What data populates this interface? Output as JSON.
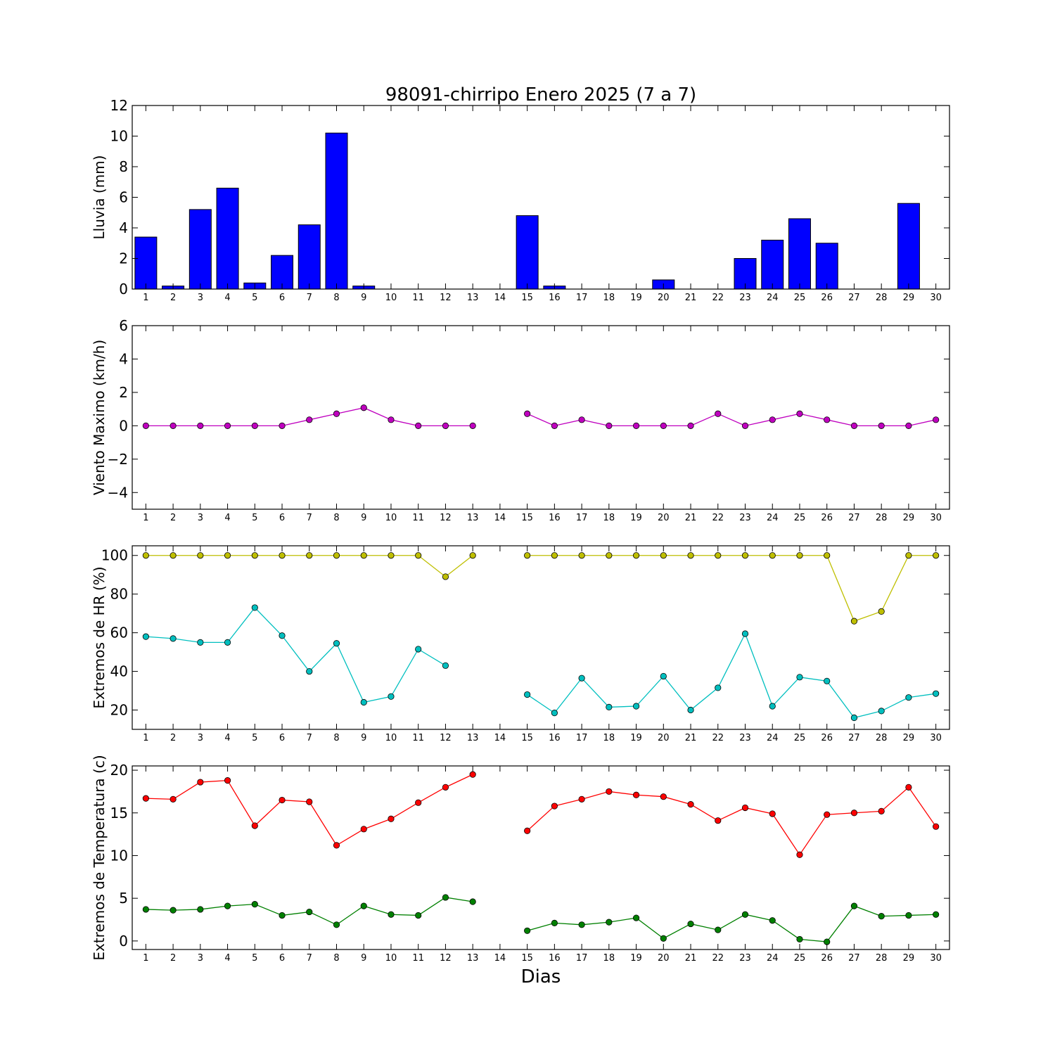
{
  "chart_data": [
    {
      "type": "bar",
      "title": "98091-chirripo Enero 2025  (7 a 7)",
      "ylabel": "Lluvia (mm)",
      "xlabel": "",
      "xlim": [
        0.5,
        30.5
      ],
      "ylim": [
        0,
        12
      ],
      "y_ticks": [
        "0",
        "2",
        "4",
        "6",
        "8",
        "10",
        "12"
      ],
      "x_ticks": [
        "1",
        "2",
        "3",
        "4",
        "5",
        "6",
        "7",
        "8",
        "9",
        "10",
        "11",
        "12",
        "13",
        "14",
        "15",
        "16",
        "17",
        "18",
        "19",
        "20",
        "21",
        "22",
        "23",
        "24",
        "25",
        "26",
        "27",
        "28",
        "29",
        "30"
      ],
      "color": "#0000ff",
      "series": [
        {
          "values": [
            3.4,
            0.2,
            5.2,
            6.6,
            0.4,
            2.2,
            4.2,
            10.2,
            0.2,
            0,
            0,
            0,
            0,
            null,
            4.8,
            0.2,
            0,
            0,
            0,
            0.6,
            0,
            0,
            2.0,
            3.2,
            4.6,
            3.0,
            0,
            0,
            5.6,
            null
          ]
        }
      ]
    },
    {
      "type": "line",
      "title": "",
      "ylabel": "Viento Maximo (km/h)",
      "xlabel": "",
      "xlim": [
        0.5,
        30.5
      ],
      "ylim": [
        -5,
        6
      ],
      "y_ticks": [
        "−4",
        "−2",
        "0",
        "2",
        "4",
        "6"
      ],
      "x_ticks": [
        "1",
        "2",
        "3",
        "4",
        "5",
        "6",
        "7",
        "8",
        "9",
        "10",
        "11",
        "12",
        "13",
        "14",
        "15",
        "16",
        "17",
        "18",
        "19",
        "20",
        "21",
        "22",
        "23",
        "24",
        "25",
        "26",
        "27",
        "28",
        "29",
        "30"
      ],
      "series": [
        {
          "color": "#bf00bf",
          "values": [
            0,
            0,
            0,
            0,
            0,
            0,
            0.36,
            0.72,
            1.08,
            0.36,
            0,
            0,
            0,
            null,
            0.72,
            0,
            0.36,
            0,
            0,
            0,
            0,
            0.72,
            0,
            0.36,
            0.72,
            0.36,
            0,
            0,
            0,
            0.36
          ]
        }
      ]
    },
    {
      "type": "line",
      "title": "",
      "ylabel": "Extremos de HR (%)",
      "xlabel": "",
      "xlim": [
        0.5,
        30.5
      ],
      "ylim": [
        10,
        105
      ],
      "y_ticks": [
        "20",
        "40",
        "60",
        "80",
        "100"
      ],
      "x_ticks": [
        "1",
        "2",
        "3",
        "4",
        "5",
        "6",
        "7",
        "8",
        "9",
        "10",
        "11",
        "12",
        "13",
        "14",
        "15",
        "16",
        "17",
        "18",
        "19",
        "20",
        "21",
        "22",
        "23",
        "24",
        "25",
        "26",
        "27",
        "28",
        "29",
        "30"
      ],
      "series": [
        {
          "color": "#bfbf00",
          "values": [
            100,
            100,
            100,
            100,
            100,
            100,
            100,
            100,
            100,
            100,
            100,
            89,
            100,
            null,
            100,
            100,
            100,
            100,
            100,
            100,
            100,
            100,
            100,
            100,
            100,
            100,
            66,
            71,
            100,
            100
          ]
        },
        {
          "color": "#00bfbf",
          "values": [
            58,
            57,
            55,
            55,
            73,
            58.5,
            40,
            54.5,
            24,
            27,
            51.5,
            43,
            null,
            null,
            28,
            18.5,
            36.5,
            21.5,
            22,
            37.5,
            20,
            31.5,
            59.5,
            22,
            37,
            35,
            16,
            19.5,
            26.5,
            28.5
          ]
        }
      ]
    },
    {
      "type": "line",
      "title": "",
      "ylabel": "Extremos de Temperatura (c)",
      "xlabel": "Dias",
      "xlim": [
        0.5,
        30.5
      ],
      "ylim": [
        -1,
        20.5
      ],
      "y_ticks": [
        "0",
        "5",
        "10",
        "15",
        "20"
      ],
      "x_ticks": [
        "1",
        "2",
        "3",
        "4",
        "5",
        "6",
        "7",
        "8",
        "9",
        "10",
        "11",
        "12",
        "13",
        "14",
        "15",
        "16",
        "17",
        "18",
        "19",
        "20",
        "21",
        "22",
        "23",
        "24",
        "25",
        "26",
        "27",
        "28",
        "29",
        "30"
      ],
      "series": [
        {
          "color": "#ff0000",
          "values": [
            16.7,
            16.6,
            18.6,
            18.8,
            13.5,
            16.5,
            16.3,
            11.2,
            13.1,
            14.3,
            16.2,
            18.0,
            19.5,
            null,
            12.9,
            15.8,
            16.6,
            17.5,
            17.1,
            16.9,
            16.0,
            14.1,
            15.6,
            14.9,
            10.1,
            14.8,
            15.0,
            15.2,
            18.0,
            13.4
          ]
        },
        {
          "color": "#008000",
          "values": [
            3.7,
            3.6,
            3.7,
            4.1,
            4.3,
            3.0,
            3.4,
            1.9,
            4.1,
            3.1,
            3.0,
            5.1,
            4.6,
            null,
            1.2,
            2.1,
            1.9,
            2.2,
            2.7,
            0.3,
            2.0,
            1.3,
            3.1,
            2.4,
            0.2,
            -0.1,
            4.1,
            2.9,
            3.0,
            3.1
          ]
        }
      ]
    }
  ]
}
